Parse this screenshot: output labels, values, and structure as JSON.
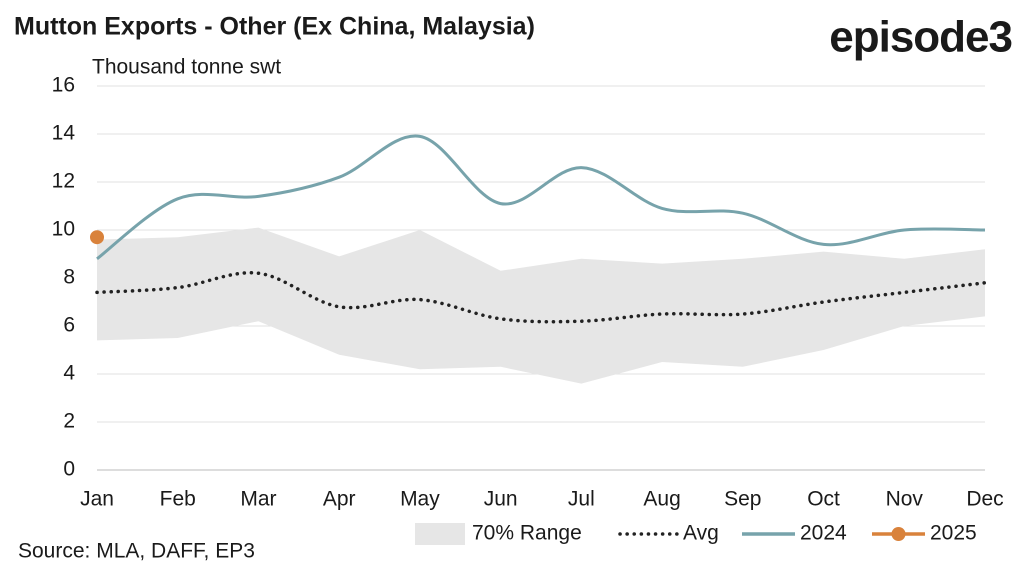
{
  "chart_data": {
    "type": "line",
    "title": "Mutton Exports - Other (Ex China, Malaysia)",
    "logo": "episode3",
    "y_label": "Thousand tonne swt",
    "source": "Source: MLA, DAFF, EP3",
    "categories": [
      "Jan",
      "Feb",
      "Mar",
      "Apr",
      "May",
      "Jun",
      "Jul",
      "Aug",
      "Sep",
      "Oct",
      "Nov",
      "Dec"
    ],
    "ylim": [
      0,
      16
    ],
    "yticks": [
      0,
      2,
      4,
      6,
      8,
      10,
      12,
      14,
      16
    ],
    "grid": true,
    "legend": "bottom",
    "range": {
      "name": "70% Range",
      "color": "#e6e6e6",
      "high": [
        9.6,
        9.7,
        10.1,
        8.9,
        10.0,
        8.3,
        8.8,
        8.6,
        8.8,
        9.1,
        8.8,
        9.2
      ],
      "low": [
        5.4,
        5.5,
        6.2,
        4.8,
        4.2,
        4.3,
        3.6,
        4.5,
        4.3,
        5.0,
        6.0,
        6.4
      ]
    },
    "series": [
      {
        "name": "Avg",
        "color": "#222222",
        "style": "dotted",
        "values": [
          7.4,
          7.6,
          8.2,
          6.8,
          7.1,
          6.3,
          6.2,
          6.5,
          6.5,
          7.0,
          7.4,
          7.8
        ]
      },
      {
        "name": "2024",
        "color": "#77a3ab",
        "style": "solid",
        "values": [
          8.8,
          11.3,
          11.4,
          12.2,
          13.9,
          11.1,
          12.6,
          10.9,
          10.7,
          9.4,
          10.0,
          10.0
        ]
      },
      {
        "name": "2025",
        "color": "#d9823b",
        "style": "marker",
        "values": [
          9.7,
          null,
          null,
          null,
          null,
          null,
          null,
          null,
          null,
          null,
          null,
          null
        ]
      }
    ]
  }
}
